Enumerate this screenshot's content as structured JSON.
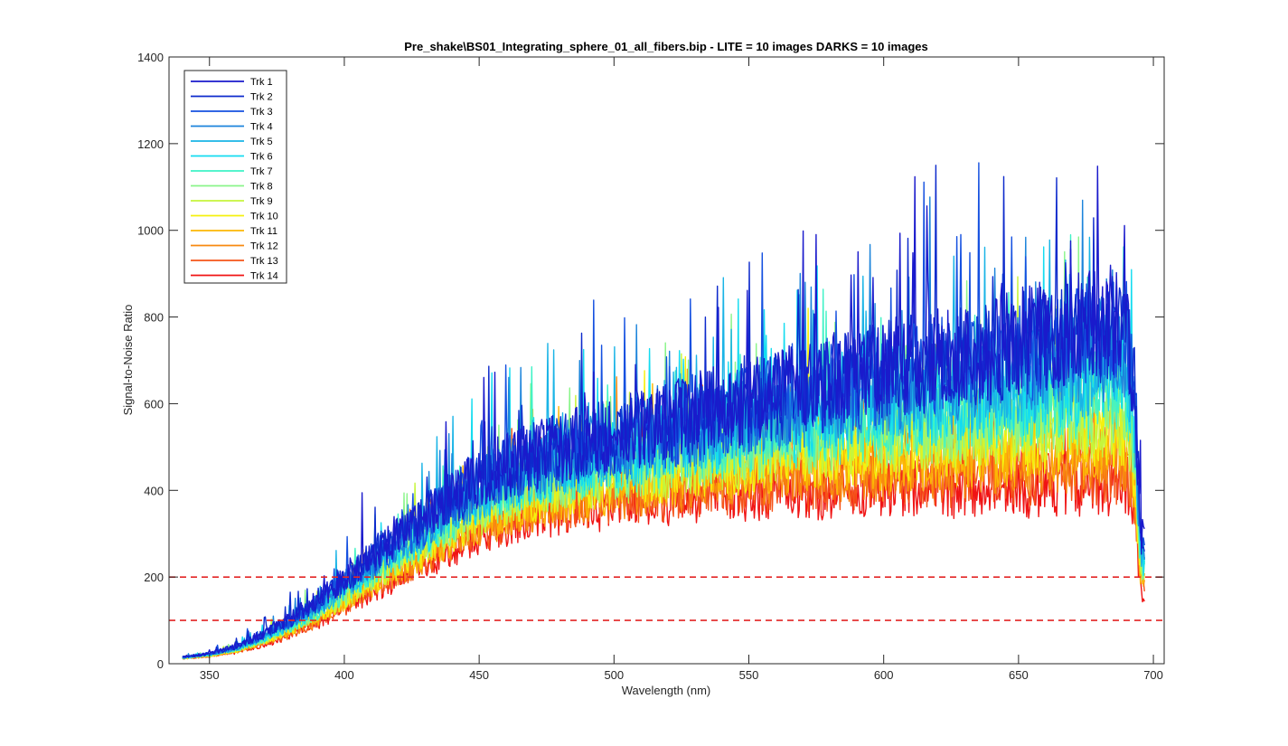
{
  "chart_data": {
    "type": "line",
    "title": "Pre_shake\\BS01_Integrating_sphere_01_all_fibers.bip - LITE =  10 images  DARKS = 10 images",
    "xlabel": "Wavelength (nm)",
    "ylabel": "Signal-to-Noise Ratio",
    "xlim": [
      335,
      704
    ],
    "ylim": [
      0,
      1400
    ],
    "xticks": [
      350,
      400,
      450,
      500,
      550,
      600,
      650,
      700
    ],
    "yticks": [
      0,
      200,
      400,
      600,
      800,
      1000,
      1200,
      1400
    ],
    "grid": false,
    "legend_position": "top-left",
    "x": [
      340,
      350,
      360,
      370,
      380,
      390,
      400,
      410,
      420,
      430,
      440,
      450,
      460,
      470,
      480,
      490,
      500,
      510,
      520,
      530,
      540,
      550,
      560,
      570,
      580,
      590,
      600,
      610,
      620,
      630,
      640,
      650,
      660,
      670,
      680,
      690,
      693,
      695,
      697
    ],
    "reference_lines": [
      {
        "y": 200,
        "color": "#e32626",
        "style": "dashed"
      },
      {
        "y": 100,
        "color": "#e32626",
        "style": "dashed"
      }
    ],
    "series": [
      {
        "name": "Trk 1",
        "color": "#1a1acc",
        "values": [
          15,
          24,
          40,
          70,
          105,
          145,
          200,
          250,
          300,
          340,
          390,
          430,
          460,
          480,
          500,
          515,
          530,
          545,
          555,
          575,
          590,
          605,
          620,
          635,
          650,
          665,
          680,
          695,
          705,
          715,
          725,
          740,
          760,
          775,
          790,
          800,
          640,
          320,
          260
        ]
      },
      {
        "name": "Trk 2",
        "color": "#0d2acc",
        "values": [
          15,
          23,
          39,
          68,
          102,
          142,
          195,
          245,
          295,
          335,
          385,
          425,
          455,
          475,
          495,
          510,
          525,
          540,
          550,
          570,
          585,
          600,
          615,
          630,
          645,
          660,
          675,
          690,
          700,
          710,
          720,
          735,
          750,
          765,
          780,
          790,
          630,
          315,
          255
        ]
      },
      {
        "name": "Trk 3",
        "color": "#1450e0",
        "values": [
          15,
          23,
          38,
          66,
          99,
          138,
          190,
          238,
          288,
          328,
          378,
          418,
          448,
          468,
          487,
          502,
          517,
          532,
          542,
          560,
          575,
          590,
          605,
          618,
          632,
          645,
          660,
          672,
          682,
          692,
          702,
          715,
          728,
          742,
          755,
          765,
          610,
          305,
          245
        ]
      },
      {
        "name": "Trk 4",
        "color": "#1c84db",
        "values": [
          14,
          22,
          37,
          64,
          96,
          134,
          184,
          232,
          280,
          320,
          368,
          408,
          438,
          458,
          477,
          492,
          506,
          520,
          530,
          548,
          562,
          575,
          588,
          600,
          612,
          624,
          636,
          648,
          658,
          667,
          676,
          688,
          700,
          712,
          724,
          733,
          590,
          295,
          238
        ]
      },
      {
        "name": "Trk 5",
        "color": "#1ab4e6",
        "values": [
          14,
          22,
          36,
          62,
          93,
          130,
          178,
          225,
          272,
          312,
          358,
          398,
          428,
          448,
          466,
          480,
          494,
          507,
          517,
          533,
          546,
          558,
          570,
          581,
          592,
          602,
          612,
          622,
          631,
          640,
          648,
          658,
          669,
          680,
          690,
          698,
          565,
          285,
          230
        ]
      },
      {
        "name": "Trk 6",
        "color": "#14dcf0",
        "values": [
          14,
          21,
          35,
          60,
          90,
          126,
          172,
          218,
          264,
          304,
          348,
          388,
          418,
          437,
          455,
          469,
          482,
          494,
          503,
          518,
          530,
          541,
          552,
          562,
          572,
          581,
          590,
          599,
          607,
          615,
          622,
          631,
          641,
          651,
          660,
          667,
          540,
          275,
          222
        ]
      },
      {
        "name": "Trk 7",
        "color": "#3ef2c6",
        "values": [
          14,
          21,
          34,
          58,
          87,
          122,
          166,
          211,
          256,
          295,
          338,
          377,
          406,
          425,
          442,
          456,
          468,
          479,
          488,
          502,
          513,
          523,
          533,
          542,
          551,
          559,
          567,
          575,
          582,
          589,
          595,
          603,
          612,
          621,
          629,
          635,
          515,
          265,
          214
        ]
      },
      {
        "name": "Trk 8",
        "color": "#8af58a",
        "values": [
          13,
          20,
          33,
          56,
          84,
          118,
          160,
          204,
          248,
          286,
          328,
          366,
          394,
          413,
          430,
          443,
          455,
          465,
          474,
          487,
          497,
          506,
          515,
          523,
          531,
          538,
          545,
          552,
          558,
          564,
          569,
          576,
          584,
          592,
          599,
          604,
          490,
          255,
          205
        ]
      },
      {
        "name": "Trk 9",
        "color": "#c6f53c",
        "values": [
          13,
          20,
          32,
          54,
          81,
          114,
          154,
          197,
          240,
          277,
          318,
          355,
          383,
          401,
          417,
          430,
          441,
          451,
          459,
          471,
          480,
          488,
          496,
          503,
          510,
          516,
          522,
          528,
          533,
          538,
          542,
          548,
          555,
          562,
          568,
          572,
          465,
          245,
          196
        ]
      },
      {
        "name": "Trk 10",
        "color": "#f5f00e",
        "values": [
          13,
          19,
          31,
          52,
          78,
          110,
          148,
          190,
          232,
          268,
          308,
          344,
          371,
          389,
          404,
          417,
          428,
          437,
          444,
          455,
          463,
          470,
          477,
          483,
          489,
          494,
          499,
          504,
          508,
          512,
          515,
          520,
          526,
          532,
          537,
          540,
          440,
          235,
          186
        ]
      },
      {
        "name": "Trk 11",
        "color": "#fcb705",
        "values": [
          13,
          19,
          30,
          50,
          75,
          106,
          143,
          184,
          224,
          259,
          298,
          333,
          360,
          377,
          392,
          404,
          414,
          422,
          429,
          439,
          446,
          452,
          458,
          463,
          468,
          472,
          476,
          480,
          483,
          486,
          488,
          492,
          497,
          502,
          506,
          508,
          415,
          225,
          176
        ]
      },
      {
        "name": "Trk 12",
        "color": "#f88a10",
        "values": [
          12,
          18,
          29,
          48,
          72,
          102,
          138,
          178,
          216,
          250,
          288,
          322,
          348,
          365,
          380,
          391,
          400,
          407,
          413,
          422,
          428,
          433,
          438,
          442,
          446,
          449,
          452,
          455,
          457,
          459,
          460,
          463,
          467,
          471,
          474,
          475,
          390,
          215,
          166
        ]
      },
      {
        "name": "Trk 13",
        "color": "#f5541a",
        "values": [
          12,
          18,
          28,
          46,
          69,
          98,
          133,
          172,
          209,
          242,
          278,
          311,
          336,
          352,
          366,
          377,
          385,
          391,
          396,
          404,
          409,
          413,
          417,
          420,
          423,
          425,
          427,
          429,
          430,
          431,
          431,
          433,
          436,
          439,
          441,
          441,
          365,
          205,
          156
        ]
      },
      {
        "name": "Trk 14",
        "color": "#f01414",
        "values": [
          12,
          17,
          27,
          44,
          66,
          94,
          128,
          166,
          202,
          234,
          268,
          300,
          324,
          340,
          353,
          363,
          370,
          375,
          379,
          386,
          390,
          393,
          396,
          398,
          400,
          401,
          402,
          403,
          403,
          403,
          402,
          403,
          405,
          407,
          408,
          407,
          340,
          195,
          145
        ]
      }
    ]
  }
}
